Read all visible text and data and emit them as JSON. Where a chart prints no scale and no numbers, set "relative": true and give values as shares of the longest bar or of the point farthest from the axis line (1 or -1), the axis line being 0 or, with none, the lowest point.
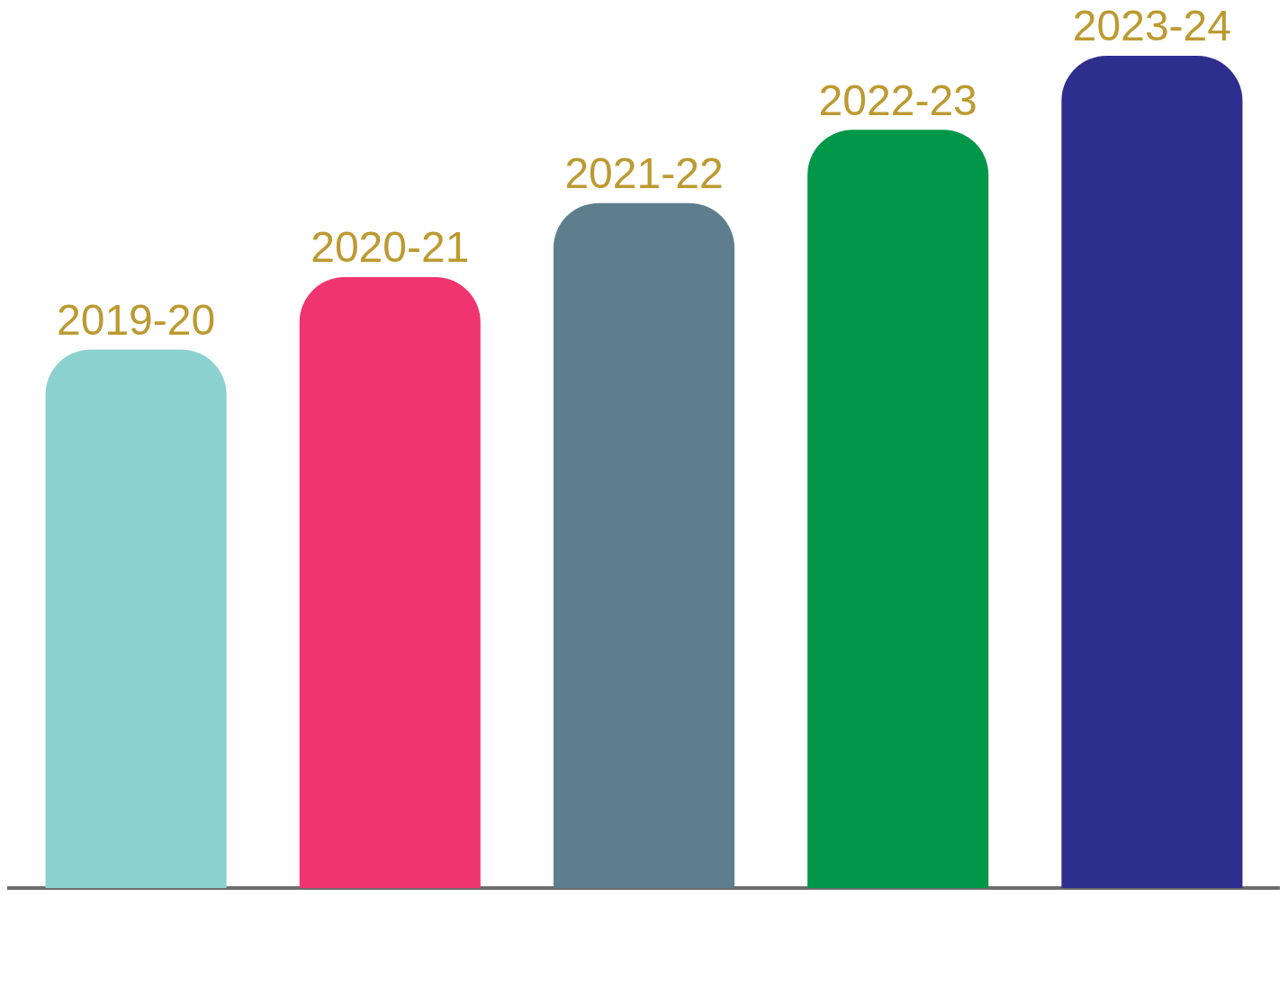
{
  "chart_data": {
    "type": "bar",
    "relative": true,
    "categories": [
      "2019-20",
      "2020-21",
      "2021-22",
      "2022-23",
      "2023-24"
    ],
    "values": [
      0.647,
      0.734,
      0.823,
      0.911,
      1
    ],
    "colors": [
      "#8bd1cf",
      "#f0346f",
      "#5e7e8e",
      "#009749",
      "#2e2e8f"
    ]
  }
}
